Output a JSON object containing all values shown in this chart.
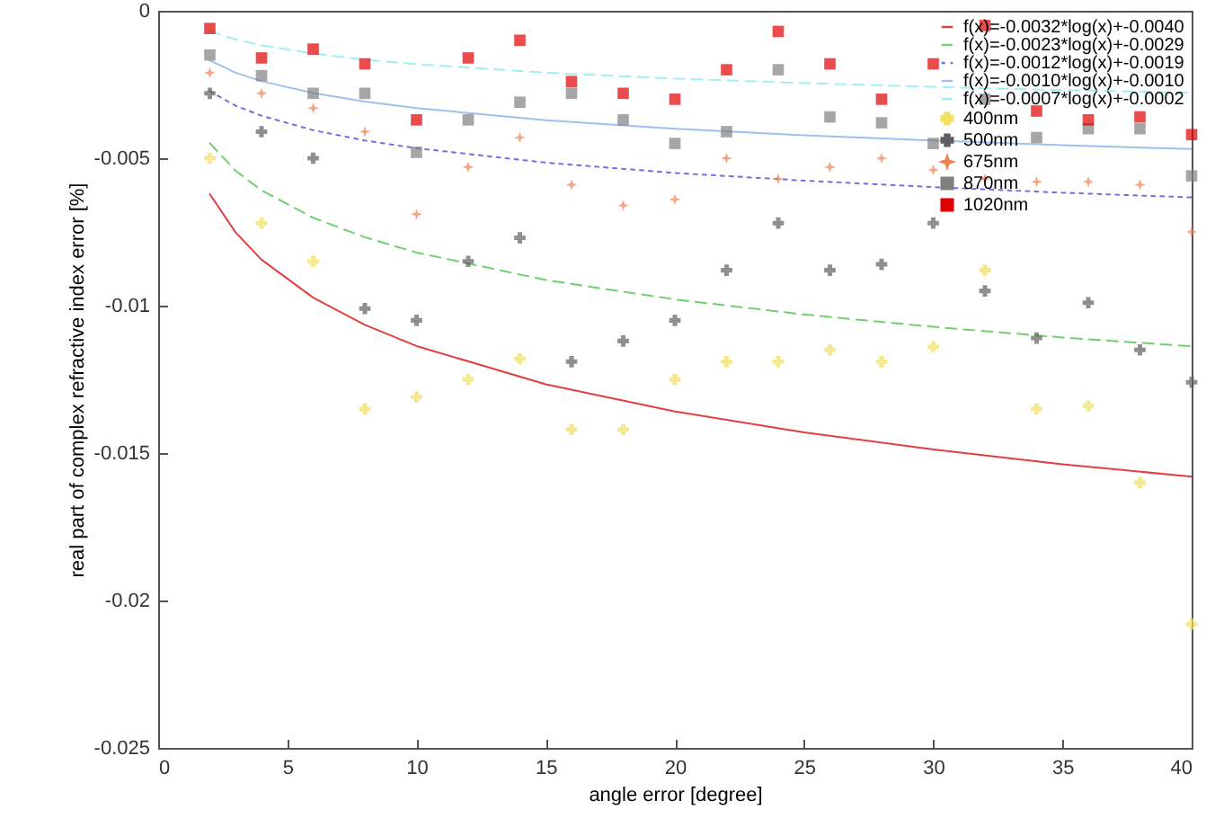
{
  "chart_data": {
    "type": "scatter",
    "xlabel": "angle error [degree]",
    "ylabel": "real part of complex refractive index error [%]",
    "xlim": [
      0,
      40
    ],
    "xticks": [
      0,
      5,
      10,
      15,
      20,
      25,
      30,
      35,
      40
    ],
    "ylim": [
      -0.025,
      0
    ],
    "yticks": [
      -0.025,
      -0.02,
      -0.015,
      -0.01,
      -0.005,
      0
    ],
    "legend": "top right",
    "grid": false,
    "x": [
      2,
      4,
      6,
      8,
      10,
      12,
      14,
      16,
      18,
      20,
      22,
      24,
      26,
      28,
      30,
      32,
      34,
      36,
      38,
      40
    ],
    "series": [
      {
        "type": "line",
        "name": "f(x)=-0.0032*log(x)+-0.0040",
        "color": "#e04040",
        "line_style": "solid",
        "x": [
          2,
          3,
          4,
          6,
          8,
          10,
          15,
          20,
          25,
          30,
          35,
          40
        ],
        "values": [
          -0.00622,
          -0.00752,
          -0.00844,
          -0.00973,
          -0.01065,
          -0.01137,
          -0.01267,
          -0.01359,
          -0.0143,
          -0.01488,
          -0.01538,
          -0.0158
        ]
      },
      {
        "type": "line",
        "name": "f(x)=-0.0023*log(x)+-0.0029",
        "color": "#70d070",
        "line_style": "dashed",
        "x": [
          2,
          3,
          4,
          6,
          8,
          10,
          15,
          20,
          25,
          30,
          35,
          40
        ],
        "values": [
          -0.00449,
          -0.00543,
          -0.00609,
          -0.00702,
          -0.00768,
          -0.0082,
          -0.00913,
          -0.00979,
          -0.0103,
          -0.01072,
          -0.01108,
          -0.01138
        ]
      },
      {
        "type": "line",
        "name": "f(x)=-0.0012*log(x)+-0.0019",
        "color": "#7070e0",
        "line_style": "dotted",
        "x": [
          2,
          3,
          4,
          6,
          8,
          10,
          15,
          20,
          25,
          30,
          35,
          40
        ],
        "values": [
          -0.00273,
          -0.00322,
          -0.00356,
          -0.00405,
          -0.0044,
          -0.00466,
          -0.00515,
          -0.0055,
          -0.00576,
          -0.00598,
          -0.00617,
          -0.00633
        ]
      },
      {
        "type": "line",
        "name": "f(x)=-0.0010*log(x)+-0.0010",
        "color": "#a0c0f0",
        "line_style": "solid",
        "x": [
          2,
          3,
          4,
          6,
          8,
          10,
          15,
          20,
          25,
          30,
          35,
          40
        ],
        "values": [
          -0.00169,
          -0.0021,
          -0.00239,
          -0.00279,
          -0.00308,
          -0.0033,
          -0.00371,
          -0.004,
          -0.00422,
          -0.0044,
          -0.00456,
          -0.00469
        ]
      },
      {
        "type": "line",
        "name": "f(x)=-0.0007*log(x)+-0.0002",
        "color": "#a0f0f0",
        "line_style": "dashed",
        "x": [
          2,
          3,
          4,
          6,
          8,
          10,
          15,
          20,
          25,
          30,
          35,
          40
        ],
        "values": [
          -0.00069,
          -0.00097,
          -0.00117,
          -0.00145,
          -0.00166,
          -0.00181,
          -0.0021,
          -0.0023,
          -0.00245,
          -0.00258,
          -0.00269,
          -0.00278
        ]
      },
      {
        "name": "400nm",
        "color": "#f0e060",
        "marker": "cross",
        "values": [
          -0.005,
          -0.0072,
          -0.0085,
          -0.0135,
          -0.0131,
          -0.0125,
          -0.0118,
          -0.0142,
          -0.0142,
          -0.0125,
          -0.0119,
          -0.0119,
          -0.0115,
          -0.0119,
          -0.0114,
          -0.0088,
          -0.0135,
          -0.0134,
          -0.016,
          -0.0208
        ]
      },
      {
        "name": "500nm",
        "color": "#606060",
        "marker": "cross",
        "values": [
          -0.0028,
          -0.0041,
          -0.005,
          -0.0101,
          -0.0105,
          -0.0085,
          -0.0077,
          -0.0119,
          -0.0112,
          -0.0105,
          -0.0088,
          -0.0072,
          -0.0088,
          -0.0086,
          -0.0072,
          -0.0095,
          -0.0111,
          -0.0099,
          -0.0115,
          -0.0126
        ]
      },
      {
        "name": "675nm",
        "color": "#f08050",
        "marker": "star",
        "values": [
          -0.0021,
          -0.0028,
          -0.0033,
          -0.0041,
          -0.0069,
          -0.0053,
          -0.0043,
          -0.0059,
          -0.0066,
          -0.0064,
          -0.005,
          -0.0057,
          -0.0053,
          -0.005,
          -0.0054,
          -0.0057,
          -0.0058,
          -0.0058,
          -0.0059,
          -0.0075
        ]
      },
      {
        "name": "870nm",
        "color": "#808080",
        "marker": "square",
        "values": [
          -0.0015,
          -0.0022,
          -0.0028,
          -0.0028,
          -0.0048,
          -0.0037,
          -0.0031,
          -0.0028,
          -0.0037,
          -0.0045,
          -0.0041,
          -0.002,
          -0.0036,
          -0.0038,
          -0.0045,
          -0.003,
          -0.0043,
          -0.004,
          -0.004,
          -0.0056
        ]
      },
      {
        "name": "1020nm",
        "color": "#e00000",
        "marker": "square",
        "values": [
          -0.0006,
          -0.0016,
          -0.0013,
          -0.0018,
          -0.0037,
          -0.0016,
          -0.001,
          -0.0024,
          -0.0028,
          -0.003,
          -0.002,
          -0.0007,
          -0.0018,
          -0.003,
          -0.0018,
          -0.0005,
          -0.0034,
          -0.0037,
          -0.0036,
          -0.0042
        ]
      }
    ]
  }
}
